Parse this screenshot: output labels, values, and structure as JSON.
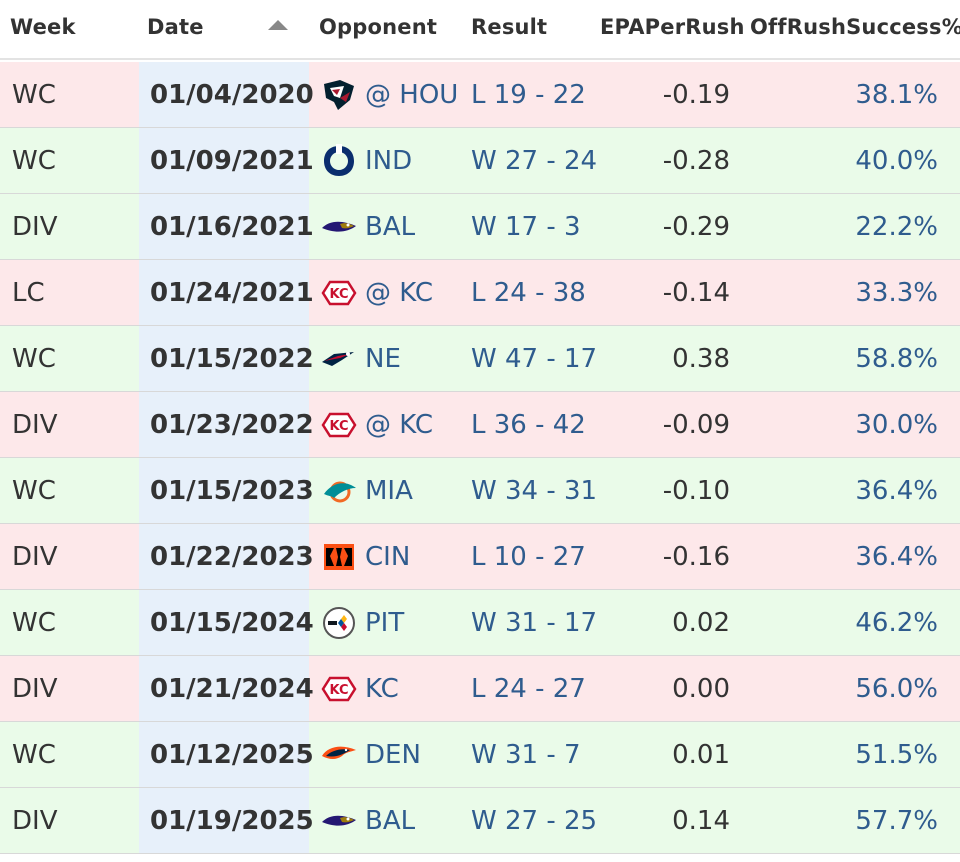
{
  "table": {
    "headers": {
      "week": "Week",
      "date": "Date",
      "opponent": "Opponent",
      "result": "Result",
      "epa": "EPAPerRush",
      "success": "OffRushSuccess%"
    },
    "sort": {
      "column": "date",
      "direction": "ascending"
    },
    "colors": {
      "loss_row": "#fde8ea",
      "win_row": "#eafbe9",
      "date_cell": "#e7f0fa",
      "link_text": "#2f5c8e"
    },
    "rows": [
      {
        "week": "WC",
        "date": "01/04/2020",
        "opponent": "@ HOU",
        "logo": "texans-logo-icon",
        "result": "L 19 - 22",
        "outcome": "loss",
        "epa": "-0.19",
        "success": "38.1%"
      },
      {
        "week": "WC",
        "date": "01/09/2021",
        "opponent": "IND",
        "logo": "colts-logo-icon",
        "result": "W 27 - 24",
        "outcome": "win",
        "epa": "-0.28",
        "success": "40.0%"
      },
      {
        "week": "DIV",
        "date": "01/16/2021",
        "opponent": "BAL",
        "logo": "ravens-logo-icon",
        "result": "W 17 - 3",
        "outcome": "win",
        "epa": "-0.29",
        "success": "22.2%"
      },
      {
        "week": "LC",
        "date": "01/24/2021",
        "opponent": "@ KC",
        "logo": "chiefs-logo-icon",
        "result": "L 24 - 38",
        "outcome": "loss",
        "epa": "-0.14",
        "success": "33.3%"
      },
      {
        "week": "WC",
        "date": "01/15/2022",
        "opponent": "NE",
        "logo": "patriots-logo-icon",
        "result": "W 47 - 17",
        "outcome": "win",
        "epa": "0.38",
        "success": "58.8%"
      },
      {
        "week": "DIV",
        "date": "01/23/2022",
        "opponent": "@ KC",
        "logo": "chiefs-logo-icon",
        "result": "L 36 - 42",
        "outcome": "loss",
        "epa": "-0.09",
        "success": "30.0%"
      },
      {
        "week": "WC",
        "date": "01/15/2023",
        "opponent": "MIA",
        "logo": "dolphins-logo-icon",
        "result": "W 34 - 31",
        "outcome": "win",
        "epa": "-0.10",
        "success": "36.4%"
      },
      {
        "week": "DIV",
        "date": "01/22/2023",
        "opponent": "CIN",
        "logo": "bengals-logo-icon",
        "result": "L 10 - 27",
        "outcome": "loss",
        "epa": "-0.16",
        "success": "36.4%"
      },
      {
        "week": "WC",
        "date": "01/15/2024",
        "opponent": "PIT",
        "logo": "steelers-logo-icon",
        "result": "W 31 - 17",
        "outcome": "win",
        "epa": "0.02",
        "success": "46.2%"
      },
      {
        "week": "DIV",
        "date": "01/21/2024",
        "opponent": "KC",
        "logo": "chiefs-logo-icon",
        "result": "L 24 - 27",
        "outcome": "loss",
        "epa": "0.00",
        "success": "56.0%"
      },
      {
        "week": "WC",
        "date": "01/12/2025",
        "opponent": "DEN",
        "logo": "broncos-logo-icon",
        "result": "W 31 - 7",
        "outcome": "win",
        "epa": "0.01",
        "success": "51.5%"
      },
      {
        "week": "DIV",
        "date": "01/19/2025",
        "opponent": "BAL",
        "logo": "ravens-logo-icon",
        "result": "W 27 - 25",
        "outcome": "win",
        "epa": "0.14",
        "success": "57.7%"
      }
    ]
  }
}
